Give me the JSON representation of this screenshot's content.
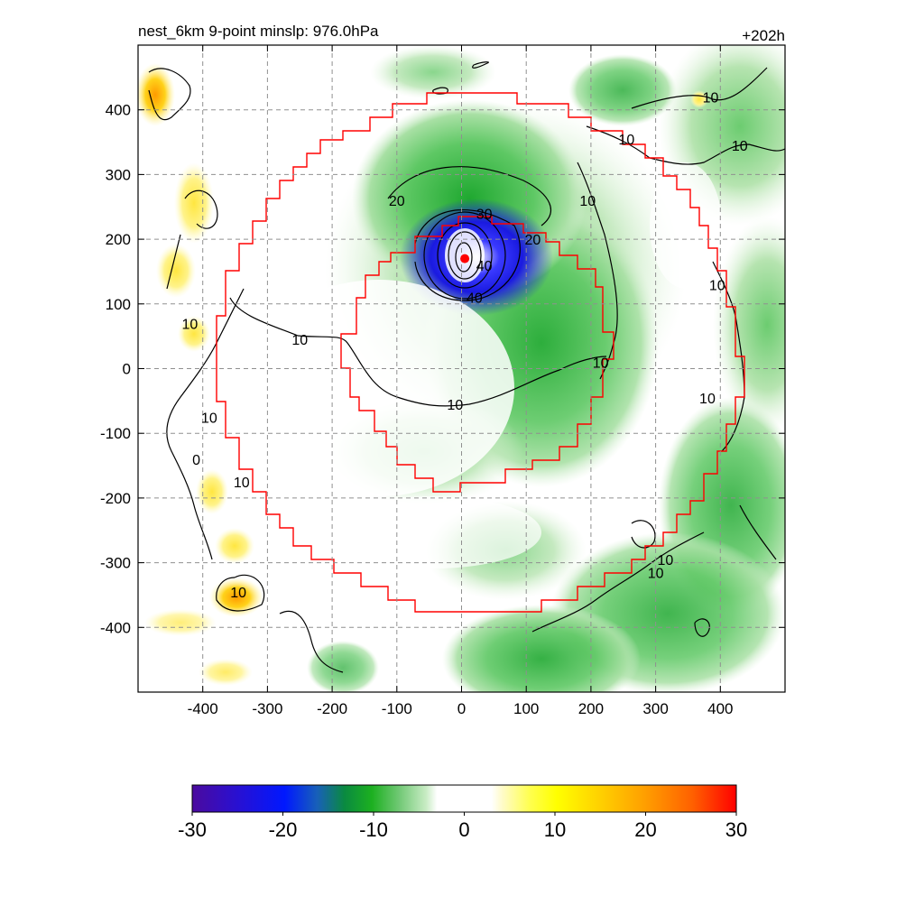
{
  "chart_data": {
    "type": "heatmap",
    "title": "nest_6km  9-point minslp: 976.0hPa",
    "time_label": "+202h",
    "x_ticks": [
      -400,
      -300,
      -200,
      -100,
      0,
      100,
      200,
      300,
      400
    ],
    "y_ticks": [
      400,
      300,
      200,
      100,
      0,
      -100,
      -200,
      -300,
      -400
    ],
    "xlim": [
      -500,
      500
    ],
    "ylim": [
      -500,
      500
    ],
    "grid": true,
    "colorbar": {
      "ticks": [
        -30,
        -20,
        -10,
        0,
        10,
        20,
        30
      ],
      "range": [
        -30,
        30
      ]
    },
    "center_marker": {
      "x": 5,
      "y": 170,
      "color": "#ff0000"
    },
    "contour_labels": [
      {
        "text": "10",
        "x": -250,
        "y": 45
      },
      {
        "text": "10",
        "x": -420,
        "y": 70
      },
      {
        "text": "10",
        "x": -390,
        "y": -75
      },
      {
        "text": "10",
        "x": -340,
        "y": -175
      },
      {
        "text": "10",
        "x": -345,
        "y": -345
      },
      {
        "text": "10",
        "x": -10,
        "y": -55
      },
      {
        "text": "10",
        "x": 215,
        "y": 10
      },
      {
        "text": "10",
        "x": 255,
        "y": 355
      },
      {
        "text": "10",
        "x": 195,
        "y": 260
      },
      {
        "text": "10",
        "x": 385,
        "y": 420
      },
      {
        "text": "10",
        "x": 430,
        "y": 345
      },
      {
        "text": "10",
        "x": 395,
        "y": 130
      },
      {
        "text": "10",
        "x": 380,
        "y": -45
      },
      {
        "text": "10",
        "x": 315,
        "y": -295
      },
      {
        "text": "10",
        "x": 300,
        "y": -315
      },
      {
        "text": "20",
        "x": -100,
        "y": 260
      },
      {
        "text": "20",
        "x": 110,
        "y": 200
      },
      {
        "text": "30",
        "x": 35,
        "y": 240
      },
      {
        "text": "40",
        "x": 35,
        "y": 160
      },
      {
        "text": "40",
        "x": 20,
        "y": 110
      },
      {
        "text": "0",
        "x": -410,
        "y": -140
      }
    ],
    "colors": {
      "boundary": "#ff0000",
      "contour": "#000000",
      "grid": "#909090"
    }
  }
}
